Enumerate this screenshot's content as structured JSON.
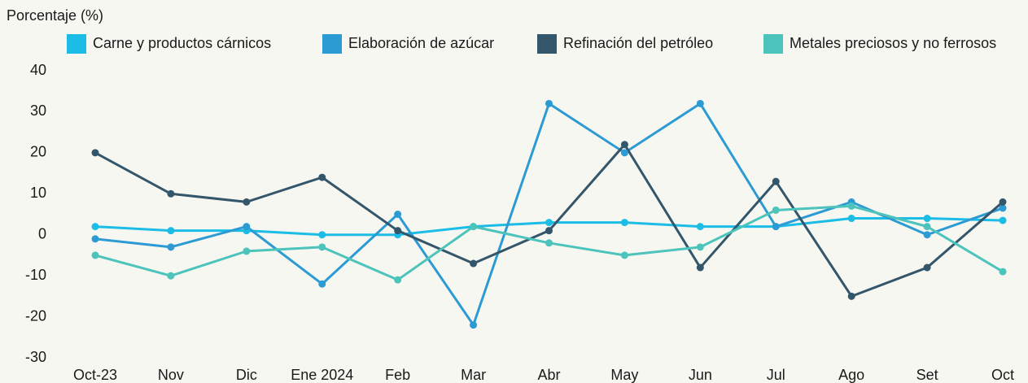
{
  "chart_data": {
    "type": "line",
    "y_label": "Porcentaje (%)",
    "categories": [
      "Oct-23",
      "Nov",
      "Dic",
      "Ene 2024",
      "Feb",
      "Mar",
      "Abr",
      "May",
      "Jun",
      "Jul",
      "Ago",
      "Set",
      "Oct"
    ],
    "series": [
      {
        "name": "Carne y productos cárnicos",
        "color": "#1bbde6",
        "values": [
          2,
          1,
          1,
          0,
          0,
          2,
          3,
          3,
          2,
          2,
          4,
          4,
          3.5
        ]
      },
      {
        "name": "Elaboración de azúcar",
        "color": "#2c9bd3",
        "values": [
          -1,
          -3,
          2,
          -12,
          5,
          -22,
          32,
          20,
          32,
          2,
          8,
          0,
          6.5
        ]
      },
      {
        "name": "Refinación del petróleo",
        "color": "#34566b",
        "values": [
          20,
          10,
          8,
          14,
          1,
          -7,
          1,
          22,
          -8,
          13,
          -15,
          -8,
          8
        ]
      },
      {
        "name": "Metales preciosos y no ferrosos",
        "color": "#4cc3bb",
        "values": [
          -5,
          -10,
          -4,
          -3,
          -11,
          2,
          -2,
          -5,
          -3,
          6,
          7,
          2,
          -9
        ]
      }
    ],
    "ylim": [
      -30,
      40
    ],
    "yticks": [
      -30,
      -20,
      -10,
      0,
      10,
      20,
      30,
      40
    ],
    "grid": false,
    "legend": "top"
  }
}
